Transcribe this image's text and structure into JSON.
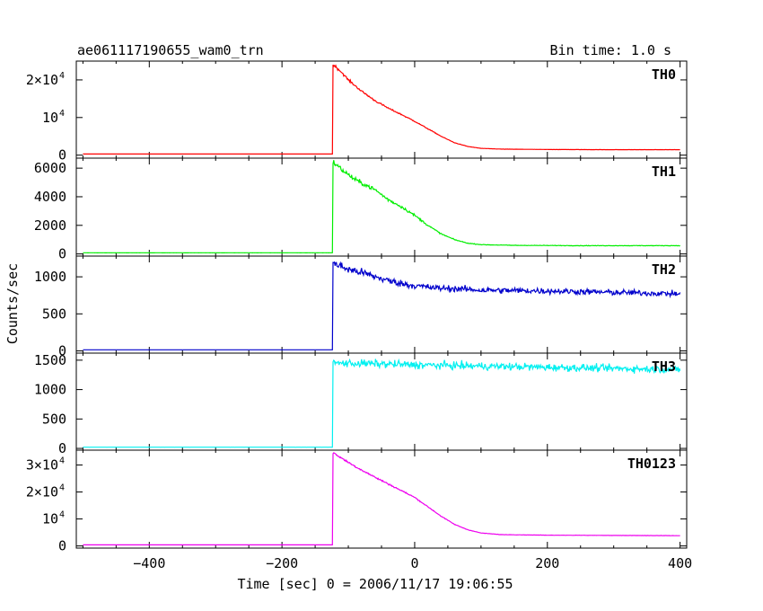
{
  "header": {
    "title": "ae061117190655_wam0_trn",
    "bin_time": "Bin time: 1.0 s"
  },
  "axes": {
    "xlabel": "Time [sec] 0 = 2006/11/17 19:06:55",
    "ylabel": "Counts/sec"
  },
  "chart_data": {
    "type": "line",
    "x": {
      "range": [
        -510,
        410
      ],
      "ticks": [
        -400,
        -200,
        0,
        200,
        400
      ],
      "tick_labels": [
        "−400",
        "−200",
        "0",
        "200",
        "400"
      ]
    },
    "grid": false,
    "panels": [
      {
        "name": "TH0",
        "color": "#ff0000",
        "ylim": [
          -800,
          25000
        ],
        "yticks": [
          {
            "value": 0,
            "base": "0",
            "exp": ""
          },
          {
            "value": 10000,
            "base": "10",
            "exp": "4"
          },
          {
            "value": 20000,
            "base": "2×10",
            "exp": "4"
          }
        ],
        "baseline": 300,
        "onset": -123,
        "peak": 24000,
        "decay_points": [
          [
            -122,
            24000
          ],
          [
            -110,
            22000
          ],
          [
            -100,
            20000
          ],
          [
            -80,
            17000
          ],
          [
            -60,
            14500
          ],
          [
            -40,
            12500
          ],
          [
            -20,
            10800
          ],
          [
            0,
            9000
          ],
          [
            20,
            7000
          ],
          [
            40,
            5000
          ],
          [
            60,
            3300
          ],
          [
            80,
            2300
          ],
          [
            100,
            1800
          ],
          [
            130,
            1600
          ],
          [
            200,
            1500
          ],
          [
            300,
            1450
          ],
          [
            400,
            1450
          ]
        ],
        "noise": 0.015
      },
      {
        "name": "TH1",
        "color": "#00ee00",
        "ylim": [
          -150,
          6700
        ],
        "yticks": [
          {
            "value": 0,
            "base": "0",
            "exp": ""
          },
          {
            "value": 2000,
            "base": "2000",
            "exp": ""
          },
          {
            "value": 4000,
            "base": "4000",
            "exp": ""
          },
          {
            "value": 6000,
            "base": "6000",
            "exp": ""
          }
        ],
        "baseline": 80,
        "onset": -123,
        "peak": 6300,
        "decay_points": [
          [
            -122,
            6400
          ],
          [
            -110,
            5900
          ],
          [
            -90,
            5200
          ],
          [
            -60,
            4500
          ],
          [
            -40,
            3800
          ],
          [
            -20,
            3300
          ],
          [
            0,
            2700
          ],
          [
            20,
            2000
          ],
          [
            40,
            1400
          ],
          [
            60,
            1000
          ],
          [
            80,
            750
          ],
          [
            100,
            650
          ],
          [
            150,
            600
          ],
          [
            250,
            580
          ],
          [
            400,
            580
          ]
        ],
        "noise": 0.03
      },
      {
        "name": "TH2",
        "color": "#0000cc",
        "ylim": [
          -30,
          1280
        ],
        "yticks": [
          {
            "value": 0,
            "base": "0",
            "exp": ""
          },
          {
            "value": 500,
            "base": "500",
            "exp": ""
          },
          {
            "value": 1000,
            "base": "1000",
            "exp": ""
          }
        ],
        "baseline": 15,
        "onset": -123,
        "peak": 1180,
        "decay_points": [
          [
            -122,
            1180
          ],
          [
            -100,
            1100
          ],
          [
            -80,
            1060
          ],
          [
            -60,
            1000
          ],
          [
            -40,
            950
          ],
          [
            -20,
            910
          ],
          [
            0,
            880
          ],
          [
            30,
            850
          ],
          [
            60,
            840
          ],
          [
            100,
            820
          ],
          [
            200,
            810
          ],
          [
            300,
            790
          ],
          [
            400,
            770
          ]
        ],
        "noise": 0.05
      },
      {
        "name": "TH3",
        "color": "#00f0f0",
        "ylim": [
          -30,
          1620
        ],
        "yticks": [
          {
            "value": 0,
            "base": "0",
            "exp": ""
          },
          {
            "value": 500,
            "base": "500",
            "exp": ""
          },
          {
            "value": 1000,
            "base": "1000",
            "exp": ""
          },
          {
            "value": 1500,
            "base": "1500",
            "exp": ""
          }
        ],
        "baseline": 20,
        "onset": -123,
        "peak": 1450,
        "decay_points": [
          [
            -122,
            1450
          ],
          [
            -60,
            1440
          ],
          [
            0,
            1420
          ],
          [
            100,
            1400
          ],
          [
            200,
            1380
          ],
          [
            300,
            1360
          ],
          [
            400,
            1340
          ]
        ],
        "noise": 0.045
      },
      {
        "name": "TH0123",
        "color": "#ee00ee",
        "ylim": [
          -800,
          35500
        ],
        "yticks": [
          {
            "value": 0,
            "base": "0",
            "exp": ""
          },
          {
            "value": 10000,
            "base": "10",
            "exp": "4"
          },
          {
            "value": 20000,
            "base": "2×10",
            "exp": "4"
          },
          {
            "value": 30000,
            "base": "3×10",
            "exp": "4"
          }
        ],
        "baseline": 400,
        "onset": -123,
        "peak": 34000,
        "decay_points": [
          [
            -122,
            34500
          ],
          [
            -110,
            32500
          ],
          [
            -90,
            29500
          ],
          [
            -60,
            25500
          ],
          [
            -40,
            23000
          ],
          [
            -20,
            20500
          ],
          [
            0,
            18000
          ],
          [
            20,
            14500
          ],
          [
            40,
            11000
          ],
          [
            60,
            8000
          ],
          [
            80,
            6000
          ],
          [
            100,
            4800
          ],
          [
            130,
            4200
          ],
          [
            200,
            4000
          ],
          [
            300,
            3900
          ],
          [
            400,
            3800
          ]
        ],
        "noise": 0.012
      }
    ]
  }
}
